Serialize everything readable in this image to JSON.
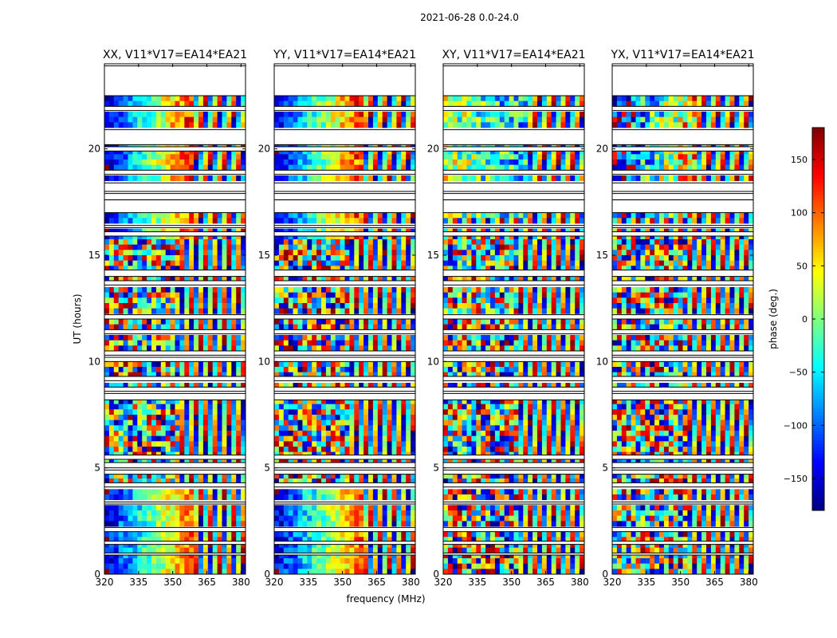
{
  "figure": {
    "suptitle": "2021-06-28 0.0-24.0"
  },
  "chart_data": {
    "type": "heatmap",
    "title": "2021-06-28 0.0-24.0",
    "xlabel": "frequency (MHz)",
    "ylabel": "UT (hours)",
    "xlim": [
      320,
      382
    ],
    "ylim": [
      0,
      24
    ],
    "xticks": [
      "320",
      "335",
      "350",
      "365",
      "380"
    ],
    "xtick_values": [
      320,
      335,
      350,
      365,
      380
    ],
    "yticks": [
      "0",
      "5",
      "10",
      "15",
      "20"
    ],
    "ytick_values": [
      0,
      5,
      10,
      15,
      20
    ],
    "panels": [
      {
        "title": "XX, V11*V17=EA14*EA21",
        "pol": "XX"
      },
      {
        "title": "YY, V11*V17=EA14*EA21",
        "pol": "YY"
      },
      {
        "title": "XY, V11*V17=EA14*EA21",
        "pol": "XY"
      },
      {
        "title": "YX, V11*V17=EA14*EA21",
        "pol": "YX"
      }
    ],
    "flagged_ut_ranges": [
      [
        22.5,
        23.9
      ],
      [
        21.8,
        22.0
      ],
      [
        20.2,
        20.9
      ],
      [
        19.9,
        20.1
      ],
      [
        18.8,
        19.0
      ],
      [
        18.0,
        18.4
      ],
      [
        17.6,
        17.9
      ],
      [
        17.0,
        17.6
      ],
      [
        16.3,
        16.4
      ],
      [
        15.9,
        16.1
      ],
      [
        14.0,
        14.3
      ],
      [
        13.6,
        13.8
      ],
      [
        12.0,
        12.2
      ],
      [
        11.3,
        11.5
      ],
      [
        10.3,
        10.5
      ],
      [
        10.0,
        10.2
      ],
      [
        9.1,
        9.3
      ],
      [
        8.6,
        8.8
      ],
      [
        8.2,
        8.5
      ],
      [
        5.4,
        5.6
      ],
      [
        5.0,
        5.25
      ],
      [
        4.7,
        4.9
      ],
      [
        4.1,
        4.3
      ],
      [
        3.3,
        3.4
      ],
      [
        2.0,
        2.2
      ],
      [
        1.4,
        1.55
      ],
      [
        0.9,
        1.0
      ]
    ],
    "colorbar": {
      "label": "phase (deg.)",
      "range": [
        -180,
        180
      ],
      "ticks": [
        -150,
        -100,
        -50,
        0,
        50,
        100,
        150
      ],
      "tick_labels": [
        "−150",
        "−100",
        "−50",
        "0",
        "50",
        "100",
        "150"
      ],
      "colormap": "jet",
      "colors": [
        "#00007f",
        "#0000ff",
        "#007fff",
        "#00ffff",
        "#7fff7f",
        "#ffff00",
        "#ff7f00",
        "#ff0000",
        "#7f0000"
      ]
    }
  }
}
